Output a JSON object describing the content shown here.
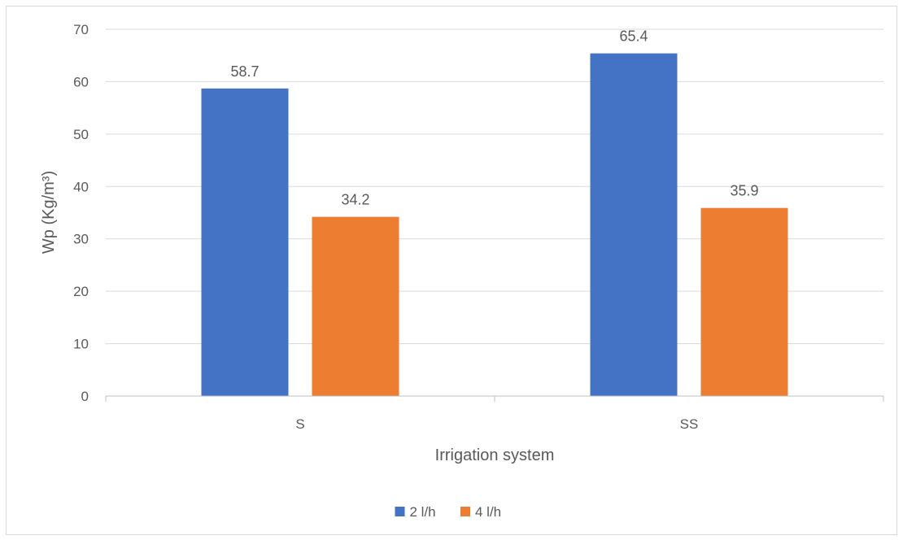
{
  "chart_data": {
    "type": "bar",
    "categories": [
      "S",
      "SS"
    ],
    "series": [
      {
        "name": "2 l/h",
        "values": [
          58.7,
          65.4
        ],
        "color": "#4472c4"
      },
      {
        "name": "4 l/h",
        "values": [
          34.2,
          35.9
        ],
        "color": "#ed7d31"
      }
    ],
    "data_labels": [
      [
        "58.7",
        "65.4"
      ],
      [
        "34.2",
        "35.9"
      ]
    ],
    "xlabel": "Irrigation system",
    "ylabel": "Wp (Kg/m³)",
    "ylim": [
      0,
      70
    ],
    "yticks": [
      "0",
      "10",
      "20",
      "30",
      "40",
      "50",
      "60",
      "70"
    ],
    "grid": true,
    "legend_position": "bottom",
    "gridline_color": "#d9d9d9",
    "axis_line_color": "#bfbfbf"
  }
}
